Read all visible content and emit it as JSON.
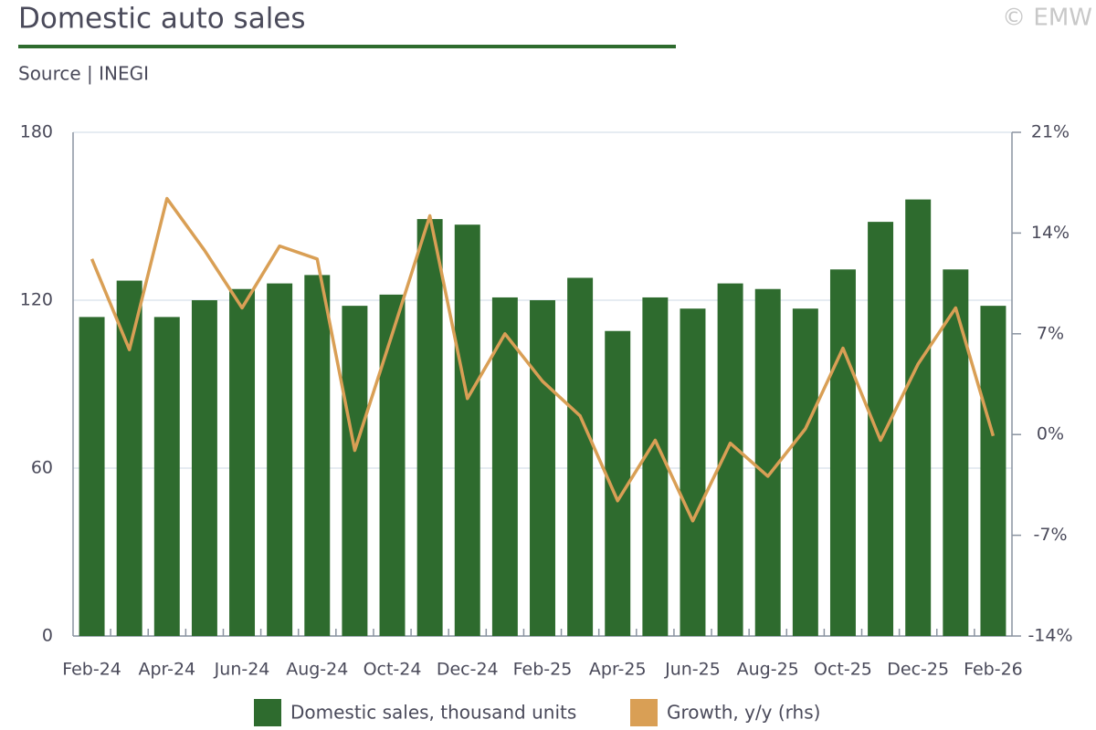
{
  "chart_data": {
    "type": "bar-line",
    "title": "Domestic auto sales",
    "subtitle": "Source | INEGI",
    "copyright": "© EMW",
    "categories": [
      "Feb-24",
      null,
      "Apr-24",
      null,
      "Jun-24",
      null,
      "Aug-24",
      null,
      "Oct-24",
      null,
      "Dec-24",
      null,
      "Feb-25",
      null,
      "Apr-25",
      null,
      "Jun-25",
      null,
      "Aug-25",
      null,
      "Oct-25",
      null,
      "Dec-25",
      null,
      "Feb-26"
    ],
    "series": [
      {
        "name": "Domestic sales, thousand units",
        "type": "bar",
        "color": "#2e6b2e",
        "values": [
          114,
          127,
          114,
          120,
          124,
          126,
          129,
          118,
          122,
          149,
          147,
          121,
          120,
          128,
          109,
          121,
          117,
          126,
          124,
          117,
          131,
          148,
          156,
          131,
          118
        ]
      },
      {
        "name": "Growth, y/y (rhs)",
        "type": "line",
        "axis": "y2",
        "color": "#d99f55",
        "values": [
          12.2,
          5.9,
          16.4,
          12.8,
          8.8,
          13.1,
          12.2,
          -1.1,
          7.0,
          15.2,
          2.5,
          7.0,
          3.7,
          1.3,
          -4.6,
          -0.4,
          -6.0,
          -0.6,
          -2.9,
          0.4,
          6.0,
          -0.4,
          4.9,
          8.8,
          -0.1
        ]
      }
    ],
    "ylim": [
      0,
      180
    ],
    "yticks": [
      0,
      60,
      120,
      180
    ],
    "y2lim": [
      -14,
      21
    ],
    "y2ticks": [
      {
        "value": -14,
        "label": "-14%"
      },
      {
        "value": -7,
        "label": "-7%"
      },
      {
        "value": 0,
        "label": "0%"
      },
      {
        "value": 7,
        "label": "7%"
      },
      {
        "value": 14,
        "label": "14%"
      },
      {
        "value": 21,
        "label": "21%"
      }
    ],
    "grid": true
  }
}
